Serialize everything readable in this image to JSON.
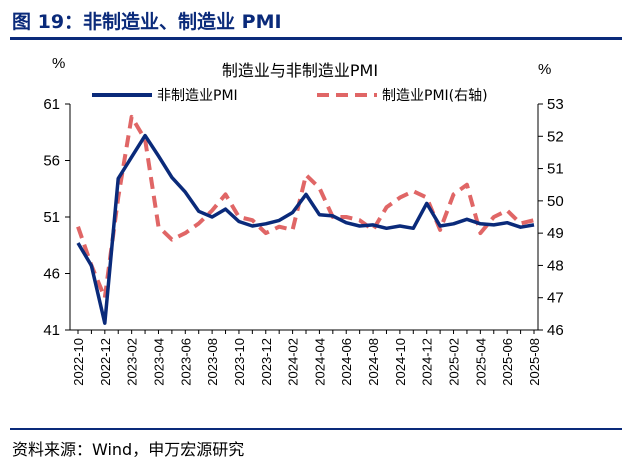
{
  "header": {
    "figure_title": "图 19：非制造业、制造业 PMI",
    "source": "资料来源：Wind，申万宏源研究"
  },
  "chart_data": {
    "type": "line",
    "title": "制造业与非制造业PMI",
    "left_unit": "%",
    "right_unit": "%",
    "x": [
      "2022-10",
      "2022-11",
      "2022-12",
      "2023-01",
      "2023-02",
      "2023-03",
      "2023-04",
      "2023-05",
      "2023-06",
      "2023-07",
      "2023-08",
      "2023-09",
      "2023-10",
      "2023-11",
      "2023-12",
      "2024-01",
      "2024-02",
      "2024-03",
      "2024-04",
      "2024-05",
      "2024-06",
      "2024-07",
      "2024-08",
      "2024-09",
      "2024-10",
      "2024-11",
      "2024-12",
      "2025-01",
      "2025-02",
      "2025-03",
      "2025-04",
      "2025-05",
      "2025-06",
      "2025-07",
      "2025-08"
    ],
    "x_tick_labels": [
      "2022-10",
      "2022-12",
      "2023-02",
      "2023-04",
      "2023-06",
      "2023-08",
      "2023-10",
      "2023-12",
      "2024-02",
      "2024-04",
      "2024-06",
      "2024-08",
      "2024-10",
      "2024-12",
      "2025-02",
      "2025-04",
      "2025-06",
      "2025-08"
    ],
    "y_left": {
      "ylim": [
        41,
        61
      ],
      "ticks": [
        41,
        46,
        51,
        56,
        61
      ]
    },
    "y_right": {
      "ylim": [
        46,
        53
      ],
      "ticks": [
        46,
        47,
        48,
        49,
        50,
        51,
        52,
        53
      ]
    },
    "legend": "top",
    "colors": {
      "non_manufacturing": "#0a2a7a",
      "manufacturing": "#e06666",
      "title_blue": "#0a2a7a"
    },
    "series": [
      {
        "name": "非制造业PMI",
        "axis": "left",
        "style": "solid",
        "values": [
          48.7,
          46.7,
          41.6,
          54.4,
          56.3,
          58.2,
          56.4,
          54.5,
          53.2,
          51.5,
          51.0,
          51.7,
          50.6,
          50.2,
          50.4,
          50.7,
          51.4,
          53.0,
          51.2,
          51.1,
          50.5,
          50.2,
          50.3,
          50.0,
          50.2,
          50.0,
          52.2,
          50.2,
          50.4,
          50.8,
          50.4,
          50.3,
          50.5,
          50.1,
          50.3
        ]
      },
      {
        "name": "制造业PMI(右轴)",
        "axis": "right",
        "style": "dashed",
        "values": [
          49.2,
          48.0,
          47.0,
          50.1,
          52.6,
          51.9,
          49.2,
          48.8,
          49.0,
          49.3,
          49.7,
          50.2,
          49.5,
          49.4,
          49.0,
          49.2,
          49.1,
          50.8,
          50.4,
          49.5,
          49.5,
          49.4,
          49.1,
          49.8,
          50.1,
          50.3,
          50.1,
          49.1,
          50.2,
          50.5,
          49.0,
          49.5,
          49.7,
          49.3,
          49.4
        ]
      }
    ]
  }
}
